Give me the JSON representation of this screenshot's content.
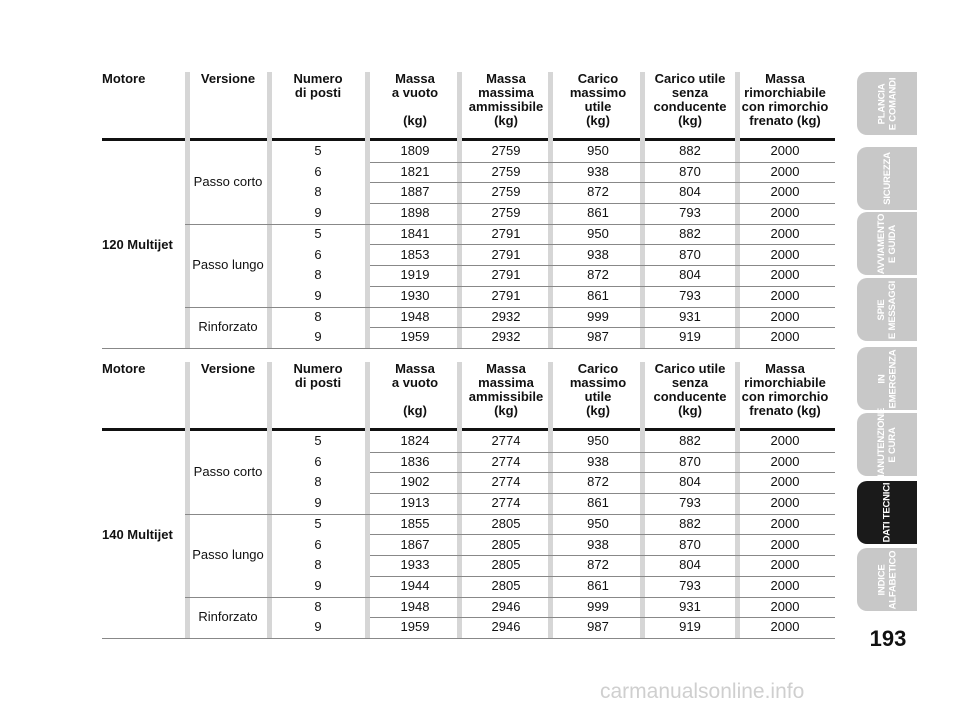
{
  "headers": {
    "motore": [
      "Motore"
    ],
    "versione": [
      "Versione"
    ],
    "posti": [
      "Numero",
      "di posti"
    ],
    "vuoto": [
      "Massa",
      "a vuoto",
      "",
      "(kg)"
    ],
    "ammissibile": [
      "Massa",
      "massima",
      "ammissibile",
      "(kg)"
    ],
    "carico": [
      "Carico",
      "massimo",
      "utile",
      "(kg)"
    ],
    "senza": [
      "Carico utile",
      "senza",
      "conducente",
      "(kg)"
    ],
    "rimorchio": [
      "Massa",
      "rimorchiabile",
      "con rimorchio",
      "frenato (kg)"
    ]
  },
  "tables": [
    {
      "motore": "120 Multijet",
      "groups": [
        {
          "versione": "Passo corto",
          "rows": [
            [
              "5",
              "1809",
              "2759",
              "950",
              "882",
              "2000"
            ],
            [
              "6",
              "1821",
              "2759",
              "938",
              "870",
              "2000"
            ],
            [
              "8",
              "1887",
              "2759",
              "872",
              "804",
              "2000"
            ],
            [
              "9",
              "1898",
              "2759",
              "861",
              "793",
              "2000"
            ]
          ]
        },
        {
          "versione": "Passo lungo",
          "rows": [
            [
              "5",
              "1841",
              "2791",
              "950",
              "882",
              "2000"
            ],
            [
              "6",
              "1853",
              "2791",
              "938",
              "870",
              "2000"
            ],
            [
              "8",
              "1919",
              "2791",
              "872",
              "804",
              "2000"
            ],
            [
              "9",
              "1930",
              "2791",
              "861",
              "793",
              "2000"
            ]
          ]
        },
        {
          "versione": "Rinforzato",
          "rows": [
            [
              "8",
              "1948",
              "2932",
              "999",
              "931",
              "2000"
            ],
            [
              "9",
              "1959",
              "2932",
              "987",
              "919",
              "2000"
            ]
          ]
        }
      ]
    },
    {
      "motore": "140 Multijet",
      "groups": [
        {
          "versione": "Passo corto",
          "rows": [
            [
              "5",
              "1824",
              "2774",
              "950",
              "882",
              "2000"
            ],
            [
              "6",
              "1836",
              "2774",
              "938",
              "870",
              "2000"
            ],
            [
              "8",
              "1902",
              "2774",
              "872",
              "804",
              "2000"
            ],
            [
              "9",
              "1913",
              "2774",
              "861",
              "793",
              "2000"
            ]
          ]
        },
        {
          "versione": "Passo lungo",
          "rows": [
            [
              "5",
              "1855",
              "2805",
              "950",
              "882",
              "2000"
            ],
            [
              "6",
              "1867",
              "2805",
              "938",
              "870",
              "2000"
            ],
            [
              "8",
              "1933",
              "2805",
              "872",
              "804",
              "2000"
            ],
            [
              "9",
              "1944",
              "2805",
              "861",
              "793",
              "2000"
            ]
          ]
        },
        {
          "versione": "Rinforzato",
          "rows": [
            [
              "8",
              "1948",
              "2946",
              "999",
              "931",
              "2000"
            ],
            [
              "9",
              "1959",
              "2946",
              "987",
              "919",
              "2000"
            ]
          ]
        }
      ]
    }
  ],
  "tabs": [
    {
      "lines": [
        "PLANCIA",
        "E COMANDI"
      ],
      "active": false
    },
    {
      "lines": [
        "SICUREZZA"
      ],
      "active": false
    },
    {
      "lines": [
        "AVVIAMENTO",
        "E GUIDA"
      ],
      "active": false
    },
    {
      "lines": [
        "SPIE",
        "E MESSAGGI"
      ],
      "active": false
    },
    {
      "lines": [
        "IN",
        "EMERGENZA"
      ],
      "active": false
    },
    {
      "lines": [
        "MANUTENZIONE",
        "E CURA"
      ],
      "active": false
    },
    {
      "lines": [
        "DATI TECNICI"
      ],
      "active": true
    },
    {
      "lines": [
        "INDICE",
        "ALFABETICO"
      ],
      "active": false
    }
  ],
  "page_number": "193",
  "watermark": "carmanualsonline.info"
}
